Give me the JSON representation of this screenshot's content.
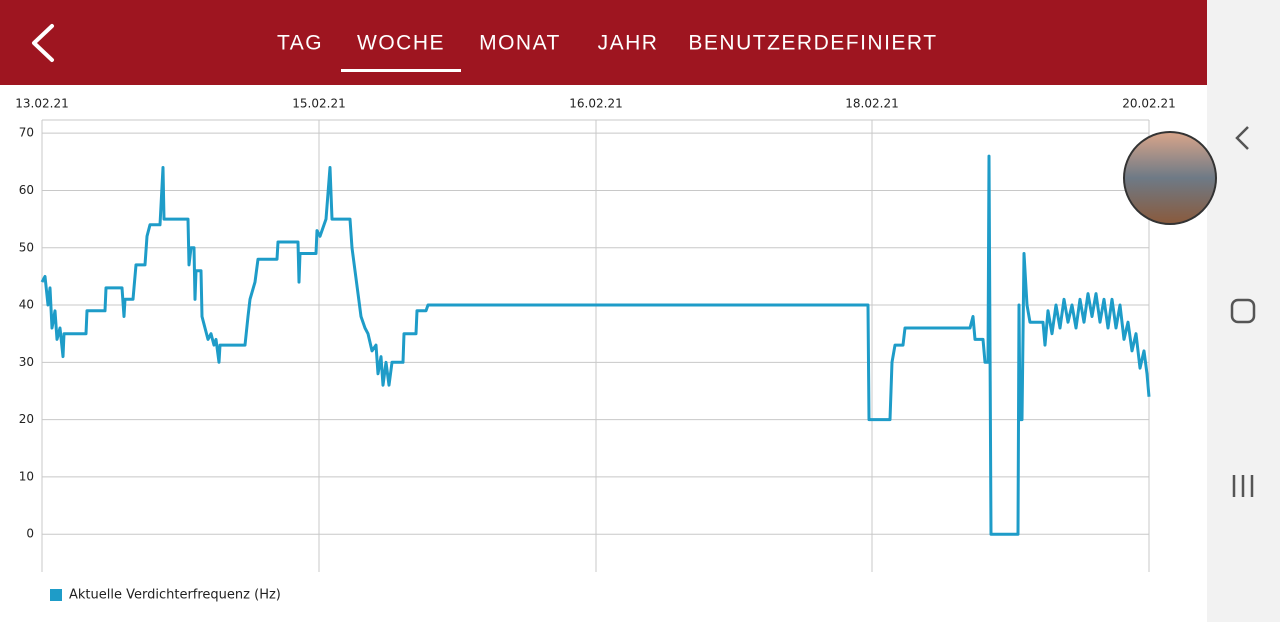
{
  "tabs": [
    "TAG",
    "WOCHE",
    "MONAT",
    "JAHR",
    "BENUTZERDEFINIERT"
  ],
  "selected_tab": 1,
  "chart_data": {
    "type": "line",
    "x": [
      0,
      3,
      6,
      8,
      10,
      13,
      15,
      18,
      21,
      22,
      28,
      44,
      45,
      63,
      64,
      80,
      82,
      83,
      91,
      94,
      103,
      105,
      108,
      118,
      121,
      122,
      146,
      147,
      149,
      152,
      153,
      154,
      159,
      160,
      163,
      166,
      169,
      172,
      174,
      177,
      178,
      203,
      206,
      208,
      213,
      216,
      220,
      235,
      236,
      256,
      257,
      258,
      274,
      275,
      278,
      284,
      288,
      290,
      308,
      310,
      313,
      316,
      319,
      323,
      326,
      330,
      334,
      336,
      339,
      341,
      344,
      347,
      350,
      361,
      362,
      374,
      375,
      384,
      386,
      826,
      827,
      848,
      850,
      853,
      861,
      863,
      928,
      931,
      933,
      941,
      943,
      946,
      947,
      949,
      976,
      977,
      978,
      980,
      982,
      985,
      988,
      1001,
      1003,
      1006,
      1010,
      1014,
      1018,
      1022,
      1026,
      1030,
      1034,
      1038,
      1042,
      1046,
      1050,
      1054,
      1058,
      1062,
      1066,
      1070,
      1074,
      1078,
      1082,
      1086,
      1090,
      1094,
      1098,
      1102,
      1105,
      1107
    ],
    "series": [
      {
        "name": "Aktuelle Verdichterfrequenz (Hz)",
        "color": "#1e9cc8",
        "values": [
          44,
          45,
          40,
          43,
          36,
          39,
          34,
          36,
          31,
          35,
          35,
          35,
          39,
          39,
          43,
          43,
          38,
          41,
          41,
          47,
          47,
          52,
          54,
          54,
          64,
          55,
          55,
          47,
          50,
          50,
          41,
          46,
          46,
          38,
          36,
          34,
          35,
          33,
          34,
          30,
          33,
          33,
          38,
          41,
          44,
          48,
          48,
          48,
          51,
          51,
          44,
          49,
          49,
          53,
          52,
          55,
          64,
          55,
          55,
          50,
          46,
          42,
          38,
          36,
          35,
          32,
          33,
          28,
          31,
          26,
          30,
          26,
          30,
          30,
          35,
          35,
          39,
          39,
          40,
          40,
          20,
          20,
          30,
          33,
          33,
          36,
          36,
          38,
          34,
          34,
          30,
          30,
          66,
          0,
          0,
          40,
          20,
          20,
          49,
          40,
          37,
          37,
          33,
          39,
          35,
          40,
          36,
          41,
          37,
          40,
          36,
          41,
          37,
          42,
          38,
          42,
          37,
          41,
          36,
          41,
          36,
          40,
          34,
          37,
          32,
          35,
          29,
          32,
          28,
          24
        ]
      }
    ],
    "xlim": [
      0,
      1107
    ],
    "xticks": [
      {
        "value": 0,
        "label": "13.02.21"
      },
      {
        "value": 277,
        "label": "15.02.21"
      },
      {
        "value": 554,
        "label": "16.02.21"
      },
      {
        "value": 830,
        "label": "18.02.21"
      },
      {
        "value": 1107,
        "label": "20.02.21"
      }
    ],
    "ylim": [
      -6.6,
      72.3
    ],
    "yticks": [
      0,
      10,
      20,
      30,
      40,
      50,
      60,
      70
    ],
    "grid": true,
    "legend": "bottom-left"
  }
}
